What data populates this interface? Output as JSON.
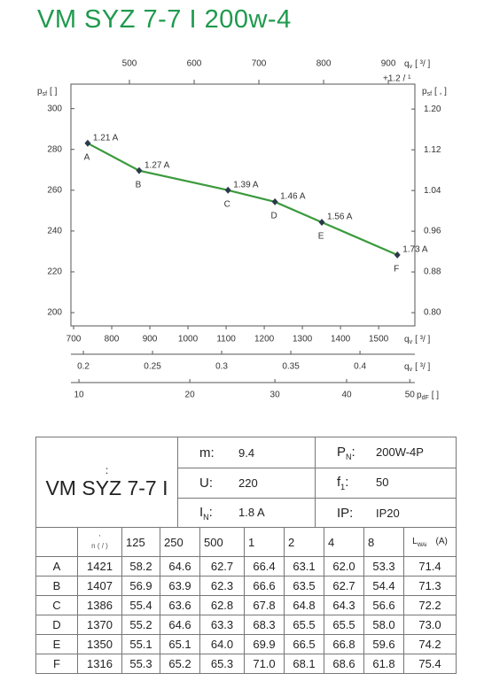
{
  "title": "VM SYZ 7-7 I 200w-4",
  "chart_data": {
    "type": "line",
    "x": [
      737,
      872,
      1105,
      1228,
      1351,
      1549
    ],
    "series": [
      {
        "color": "#3a9a3c",
        "marker_color": "#2b3a4a",
        "values": [
          283,
          269.6,
          260,
          254.3,
          244.3,
          228.3
        ],
        "current_labels": [
          "1.21 A",
          "1.27 A",
          "1.39 A",
          "1.46 A",
          "1.56 A",
          "1.73 A"
        ],
        "point_labels": [
          "A",
          "B",
          "C",
          "D",
          "E",
          "F"
        ]
      }
    ],
    "xlim": [
      693,
      1595
    ],
    "xticks": [
      700,
      800,
      900,
      1000,
      1100,
      1200,
      1300,
      1400,
      1500
    ],
    "x_label": {
      "base": "q",
      "sub": "v",
      "unit": "[ ³/ ]"
    },
    "ylim": [
      193.5,
      312
    ],
    "yticks": [
      200,
      220,
      240,
      260,
      280,
      300
    ],
    "y_label": {
      "base": "p",
      "sub": "sf",
      "unit": "[   ]"
    },
    "y2lim": [
      0.774,
      1.249
    ],
    "y2ticks": [
      {
        "value": 0.8,
        "label": "0.80"
      },
      0.88,
      0.96,
      1.04,
      1.12,
      {
        "value": 1.2,
        "label": "1.20"
      }
    ],
    "y2_label": {
      "base": "p",
      "sub": "sf",
      "unit": "[            ,    ]"
    },
    "top_axis": {
      "xlim": [
        409.6,
        941
      ],
      "xticks": [
        500,
        600,
        700,
        800,
        900
      ],
      "label": {
        "base": "q",
        "sub": "v",
        "unit": "[   ³/    ]"
      },
      "note": "+1.2   /  ¹"
    },
    "extra_axes": [
      {
        "xlim": [
          0.191,
          0.4397
        ],
        "xticks": [
          0.2,
          0.25,
          0.3,
          0.35,
          0.4
        ],
        "label": {
          "base": "q",
          "sub": "v",
          "unit": "[  ³/  ]"
        }
      },
      {
        "scale": "sqrt",
        "xlim": [
          9.41,
          50.85
        ],
        "xticks": [
          10,
          20,
          30,
          40,
          50
        ],
        "label": {
          "base": "p",
          "sub": "dF",
          "unit": "[   ]"
        }
      }
    ]
  },
  "table": {
    "model_note": ":",
    "model": "VM SYZ 7-7 I",
    "specs": [
      [
        {
          "label": "m:",
          "value": "9.4"
        },
        {
          "label": "P",
          "sub": "N",
          "suffix": ":",
          "value": "200W-4P"
        }
      ],
      [
        {
          "label": "U:",
          "value": "220"
        },
        {
          "label": "f",
          "sub": "1",
          "suffix": ":",
          "value": "50"
        }
      ],
      [
        {
          "label": "I",
          "sub": "N",
          "suffix": ":",
          "value": "1.8  A"
        },
        {
          "label": "IP:",
          "value": "IP20"
        }
      ]
    ],
    "header": {
      "speed_note": "'",
      "speed": "n (  /  )",
      "bands": [
        "125",
        "250",
        "500",
        "1",
        "2",
        "4",
        "8"
      ],
      "lwa": {
        "label": "L",
        "sub": "WAi",
        "unit": "(A)"
      }
    },
    "rows": [
      [
        "A",
        "1421",
        "58.2",
        "64.6",
        "62.7",
        "66.4",
        "63.1",
        "62.0",
        "53.3",
        "71.4"
      ],
      [
        "B",
        "1407",
        "56.9",
        "63.9",
        "62.3",
        "66.6",
        "63.5",
        "62.7",
        "54.4",
        "71.3"
      ],
      [
        "C",
        "1386",
        "55.4",
        "63.6",
        "62.8",
        "67.8",
        "64.8",
        "64.3",
        "56.6",
        "72.2"
      ],
      [
        "D",
        "1370",
        "55.2",
        "64.6",
        "63.3",
        "68.3",
        "65.5",
        "65.5",
        "58.0",
        "73.0"
      ],
      [
        "E",
        "1350",
        "55.1",
        "65.1",
        "64.0",
        "69.9",
        "66.5",
        "66.8",
        "59.6",
        "74.2"
      ],
      [
        "F",
        "1316",
        "55.3",
        "65.2",
        "65.3",
        "71.0",
        "68.1",
        "68.6",
        "61.8",
        "75.4"
      ]
    ]
  }
}
